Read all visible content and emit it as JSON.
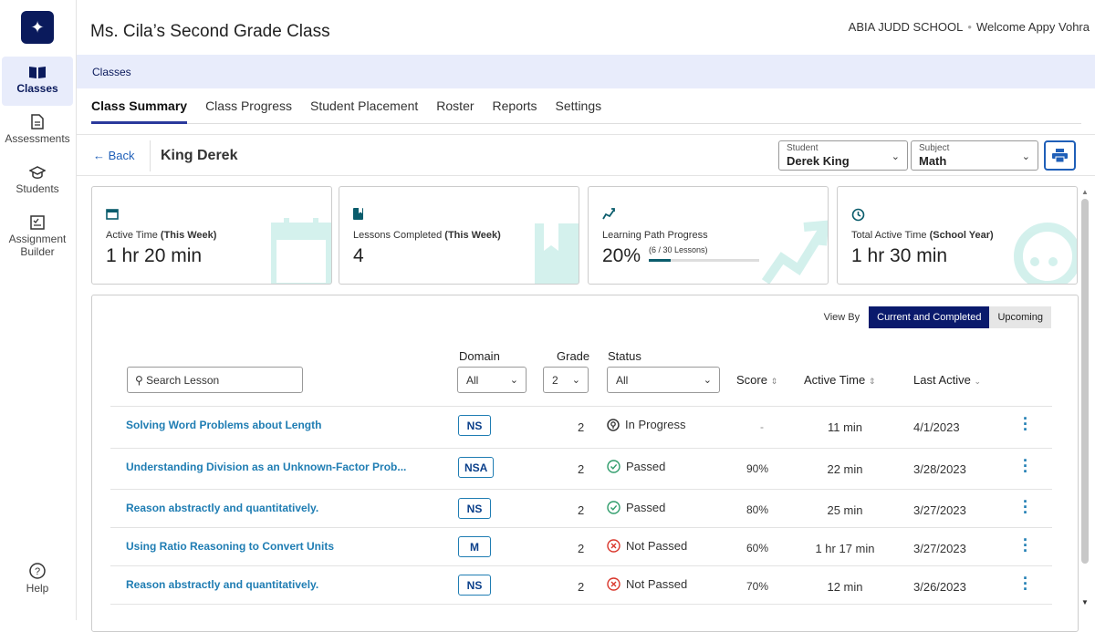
{
  "rail": {
    "items": [
      {
        "label": "Classes",
        "icon": "book-icon"
      },
      {
        "label": "Assessments",
        "icon": "document-icon"
      },
      {
        "label": "Students",
        "icon": "graduation-cap-icon"
      },
      {
        "label": "Assignment Builder",
        "icon": "checklist-icon"
      },
      {
        "label": "Help",
        "icon": "help-icon"
      }
    ]
  },
  "header": {
    "class_title": "Ms. Cila’s Second Grade Class",
    "school": "ABIA JUDD SCHOOL",
    "welcome": "Welcome Appy Vohra"
  },
  "breadcrumb": "Classes",
  "tabs": [
    "Class Summary",
    "Class Progress",
    "Student Placement",
    "Roster",
    "Reports",
    "Settings"
  ],
  "student_bar": {
    "back_label": "Back",
    "student_name": "King Derek",
    "student_select": {
      "label": "Student",
      "value": "Derek King"
    },
    "subject_select": {
      "label": "Subject",
      "value": "Math"
    }
  },
  "cards": [
    {
      "label": "Active Time ",
      "label_bold": "(This Week)",
      "value": "1 hr 20 min",
      "icon": "calendar-icon"
    },
    {
      "label": "Lessons Completed ",
      "label_bold": "(This Week)",
      "value": "4",
      "icon": "bookmark-icon"
    },
    {
      "label": "Learning Path Progress",
      "label_bold": "",
      "value": "20%",
      "sub": "(6 / 30 Lessons)",
      "progress": 0.2,
      "icon": "path-icon"
    },
    {
      "label": "Total Active Time ",
      "label_bold": "(School Year)",
      "value": "1 hr 30 min",
      "icon": "timer-icon"
    }
  ],
  "view_by": {
    "label": "View By",
    "options": [
      "Current and Completed",
      "Upcoming"
    ],
    "selected": "Current and Completed"
  },
  "filters": {
    "search_placeholder": "Search Lesson",
    "domain": {
      "header": "Domain",
      "value": "All"
    },
    "grade": {
      "header": "Grade",
      "value": "2"
    },
    "status": {
      "header": "Status",
      "value": "All"
    }
  },
  "columns": {
    "score": "Score",
    "active_time": "Active Time",
    "last_active": "Last Active"
  },
  "rows": [
    {
      "lesson": "Solving Word Problems about Length",
      "domain": "NS",
      "grade": "2",
      "status": "In Progress",
      "score": "-",
      "active_time": "11 min",
      "last_active": "4/1/2023"
    },
    {
      "lesson": "Understanding Division as an Unknown-Factor Prob...",
      "domain": "NSA",
      "grade": "2",
      "status": "Passed",
      "score": "90%",
      "active_time": "22 min",
      "last_active": "3/28/2023"
    },
    {
      "lesson": "Reason abstractly and quantitatively.",
      "domain": "NS",
      "grade": "2",
      "status": "Passed",
      "score": "80%",
      "active_time": "25 min",
      "last_active": "3/27/2023"
    },
    {
      "lesson": "Using Ratio Reasoning to Convert Units",
      "domain": "M",
      "grade": "2",
      "status": "Not Passed",
      "score": "60%",
      "active_time": "1 hr 17 min",
      "last_active": "3/27/2023"
    },
    {
      "lesson": "Reason abstractly and quantitatively.",
      "domain": "NS",
      "grade": "2",
      "status": "Not Passed",
      "score": "70%",
      "active_time": "12 min",
      "last_active": "3/26/2023"
    }
  ],
  "colors": {
    "navy": "#0a1a5c",
    "link": "#1f7db3",
    "teal": "#3cbfae",
    "fail": "#d9362b",
    "pass": "#2e9c6a"
  }
}
